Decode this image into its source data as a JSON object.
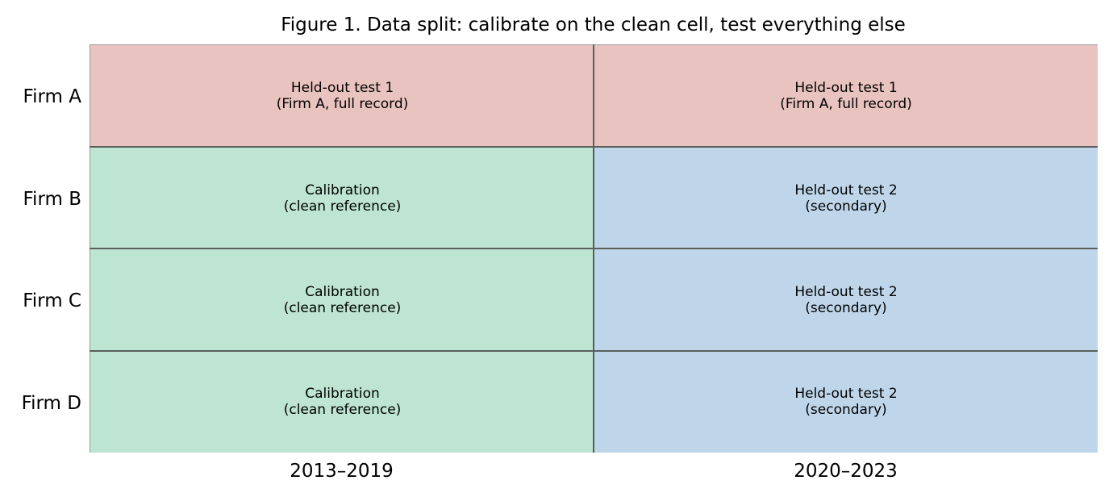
{
  "title": "Figure 1. Data split: calibrate on the clean cell, test everything else",
  "colors": {
    "heldout_test_1": "#e9c3bf",
    "calibration": "#bde5d1",
    "heldout_test_2": "#bfd6ea",
    "grid_line": "#5a5f5c",
    "frame": "#999999"
  },
  "rows": [
    {
      "label": "Firm A"
    },
    {
      "label": "Firm B"
    },
    {
      "label": "Firm C"
    },
    {
      "label": "Firm D"
    }
  ],
  "columns": [
    {
      "label": "2013–2019"
    },
    {
      "label": "2020–2023"
    }
  ],
  "cells": [
    [
      {
        "kind": "heldout_test_1",
        "line1": "Held-out test 1",
        "line2": "(Firm A, full record)"
      },
      {
        "kind": "heldout_test_1",
        "line1": "Held-out test 1",
        "line2": "(Firm A, full record)"
      }
    ],
    [
      {
        "kind": "calibration",
        "line1": "Calibration",
        "line2": "(clean reference)"
      },
      {
        "kind": "heldout_test_2",
        "line1": "Held-out test 2",
        "line2": "(secondary)"
      }
    ],
    [
      {
        "kind": "calibration",
        "line1": "Calibration",
        "line2": "(clean reference)"
      },
      {
        "kind": "heldout_test_2",
        "line1": "Held-out test 2",
        "line2": "(secondary)"
      }
    ],
    [
      {
        "kind": "calibration",
        "line1": "Calibration",
        "line2": "(clean reference)"
      },
      {
        "kind": "heldout_test_2",
        "line1": "Held-out test 2",
        "line2": "(secondary)"
      }
    ]
  ]
}
